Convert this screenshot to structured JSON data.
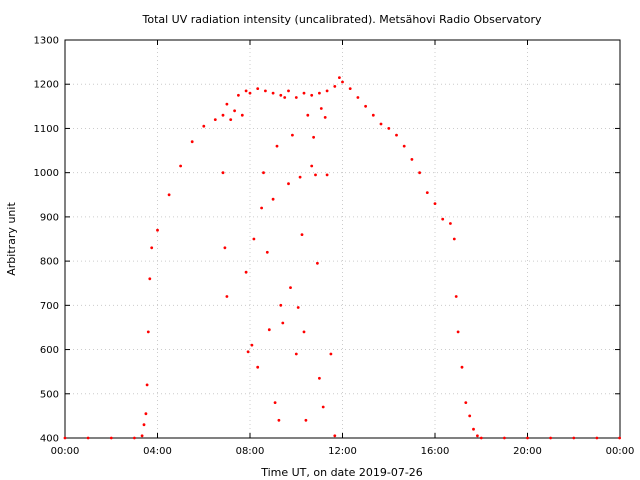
{
  "chart_data": {
    "type": "scatter",
    "title": "Total UV radiation intensity (uncalibrated). Metsähovi Radio Observatory",
    "xlabel": "Time UT, on date 2019-07-26",
    "ylabel": "Arbitrary unit",
    "xlim": [
      "00:00",
      "24:00"
    ],
    "ylim": [
      400,
      1300
    ],
    "x_tick_labels": [
      "00:00",
      "04:00",
      "08:00",
      "12:00",
      "16:00",
      "20:00",
      "00:00"
    ],
    "y_tick_labels": [
      "400",
      "500",
      "600",
      "700",
      "800",
      "900",
      "1000",
      "1100",
      "1200",
      "1300"
    ],
    "grid": true,
    "series_color": "#ff0000",
    "series": [
      {
        "x": [
          "00:00",
          "01:00",
          "02:00",
          "03:00",
          "03:20",
          "03:25",
          "03:30",
          "03:33",
          "03:36",
          "03:40",
          "03:45",
          "04:00",
          "04:30",
          "05:00",
          "05:30",
          "06:00",
          "06:30",
          "06:50",
          "07:00",
          "07:30",
          "07:50",
          "08:00",
          "08:20",
          "08:40",
          "09:00",
          "09:20",
          "09:40",
          "10:00",
          "10:20",
          "10:40",
          "11:00",
          "11:20",
          "11:40",
          "11:52",
          "12:00",
          "12:20",
          "12:40",
          "13:00",
          "13:20",
          "13:40",
          "14:00",
          "14:20",
          "14:40",
          "15:00",
          "15:20",
          "15:40",
          "16:00",
          "16:20",
          "16:40",
          "16:50",
          "16:55",
          "17:00",
          "17:10",
          "17:20",
          "17:30",
          "17:40",
          "17:50",
          "18:00",
          "19:00",
          "20:00",
          "21:00",
          "22:00",
          "23:00",
          "23:59"
        ],
        "y": [
          400,
          400,
          400,
          400,
          405,
          430,
          455,
          520,
          640,
          760,
          830,
          870,
          950,
          1015,
          1070,
          1105,
          1120,
          1130,
          1155,
          1175,
          1185,
          1180,
          1190,
          1185,
          1180,
          1175,
          1185,
          1170,
          1180,
          1175,
          1180,
          1185,
          1195,
          1215,
          1205,
          1190,
          1170,
          1150,
          1130,
          1110,
          1100,
          1085,
          1060,
          1030,
          1000,
          955,
          930,
          895,
          885,
          850,
          720,
          640,
          560,
          480,
          450,
          420,
          405,
          400,
          400,
          400,
          400,
          400,
          400,
          400
        ]
      },
      {
        "x": [
          "06:50",
          "06:55",
          "07:00",
          "07:10",
          "07:20",
          "07:40",
          "07:50",
          "07:55",
          "08:05",
          "08:10",
          "08:20",
          "08:30",
          "08:35",
          "08:45",
          "08:50",
          "09:00",
          "09:05",
          "09:10",
          "09:15",
          "09:20",
          "09:25",
          "09:30",
          "09:40",
          "09:45",
          "09:50",
          "10:00",
          "10:05",
          "10:10",
          "10:15",
          "10:20",
          "10:25",
          "10:30",
          "10:40",
          "10:45",
          "10:50",
          "10:55",
          "11:00",
          "11:05",
          "11:10",
          "11:15",
          "11:20",
          "11:30",
          "11:40"
        ],
        "y": [
          1000,
          830,
          720,
          1120,
          1140,
          1130,
          775,
          595,
          610,
          850,
          560,
          920,
          1000,
          820,
          645,
          940,
          480,
          1060,
          440,
          700,
          660,
          1170,
          975,
          740,
          1085,
          590,
          695,
          990,
          860,
          640,
          440,
          1130,
          1015,
          1080,
          995,
          795,
          535,
          1145,
          470,
          1125,
          995,
          590,
          405
        ]
      }
    ]
  }
}
